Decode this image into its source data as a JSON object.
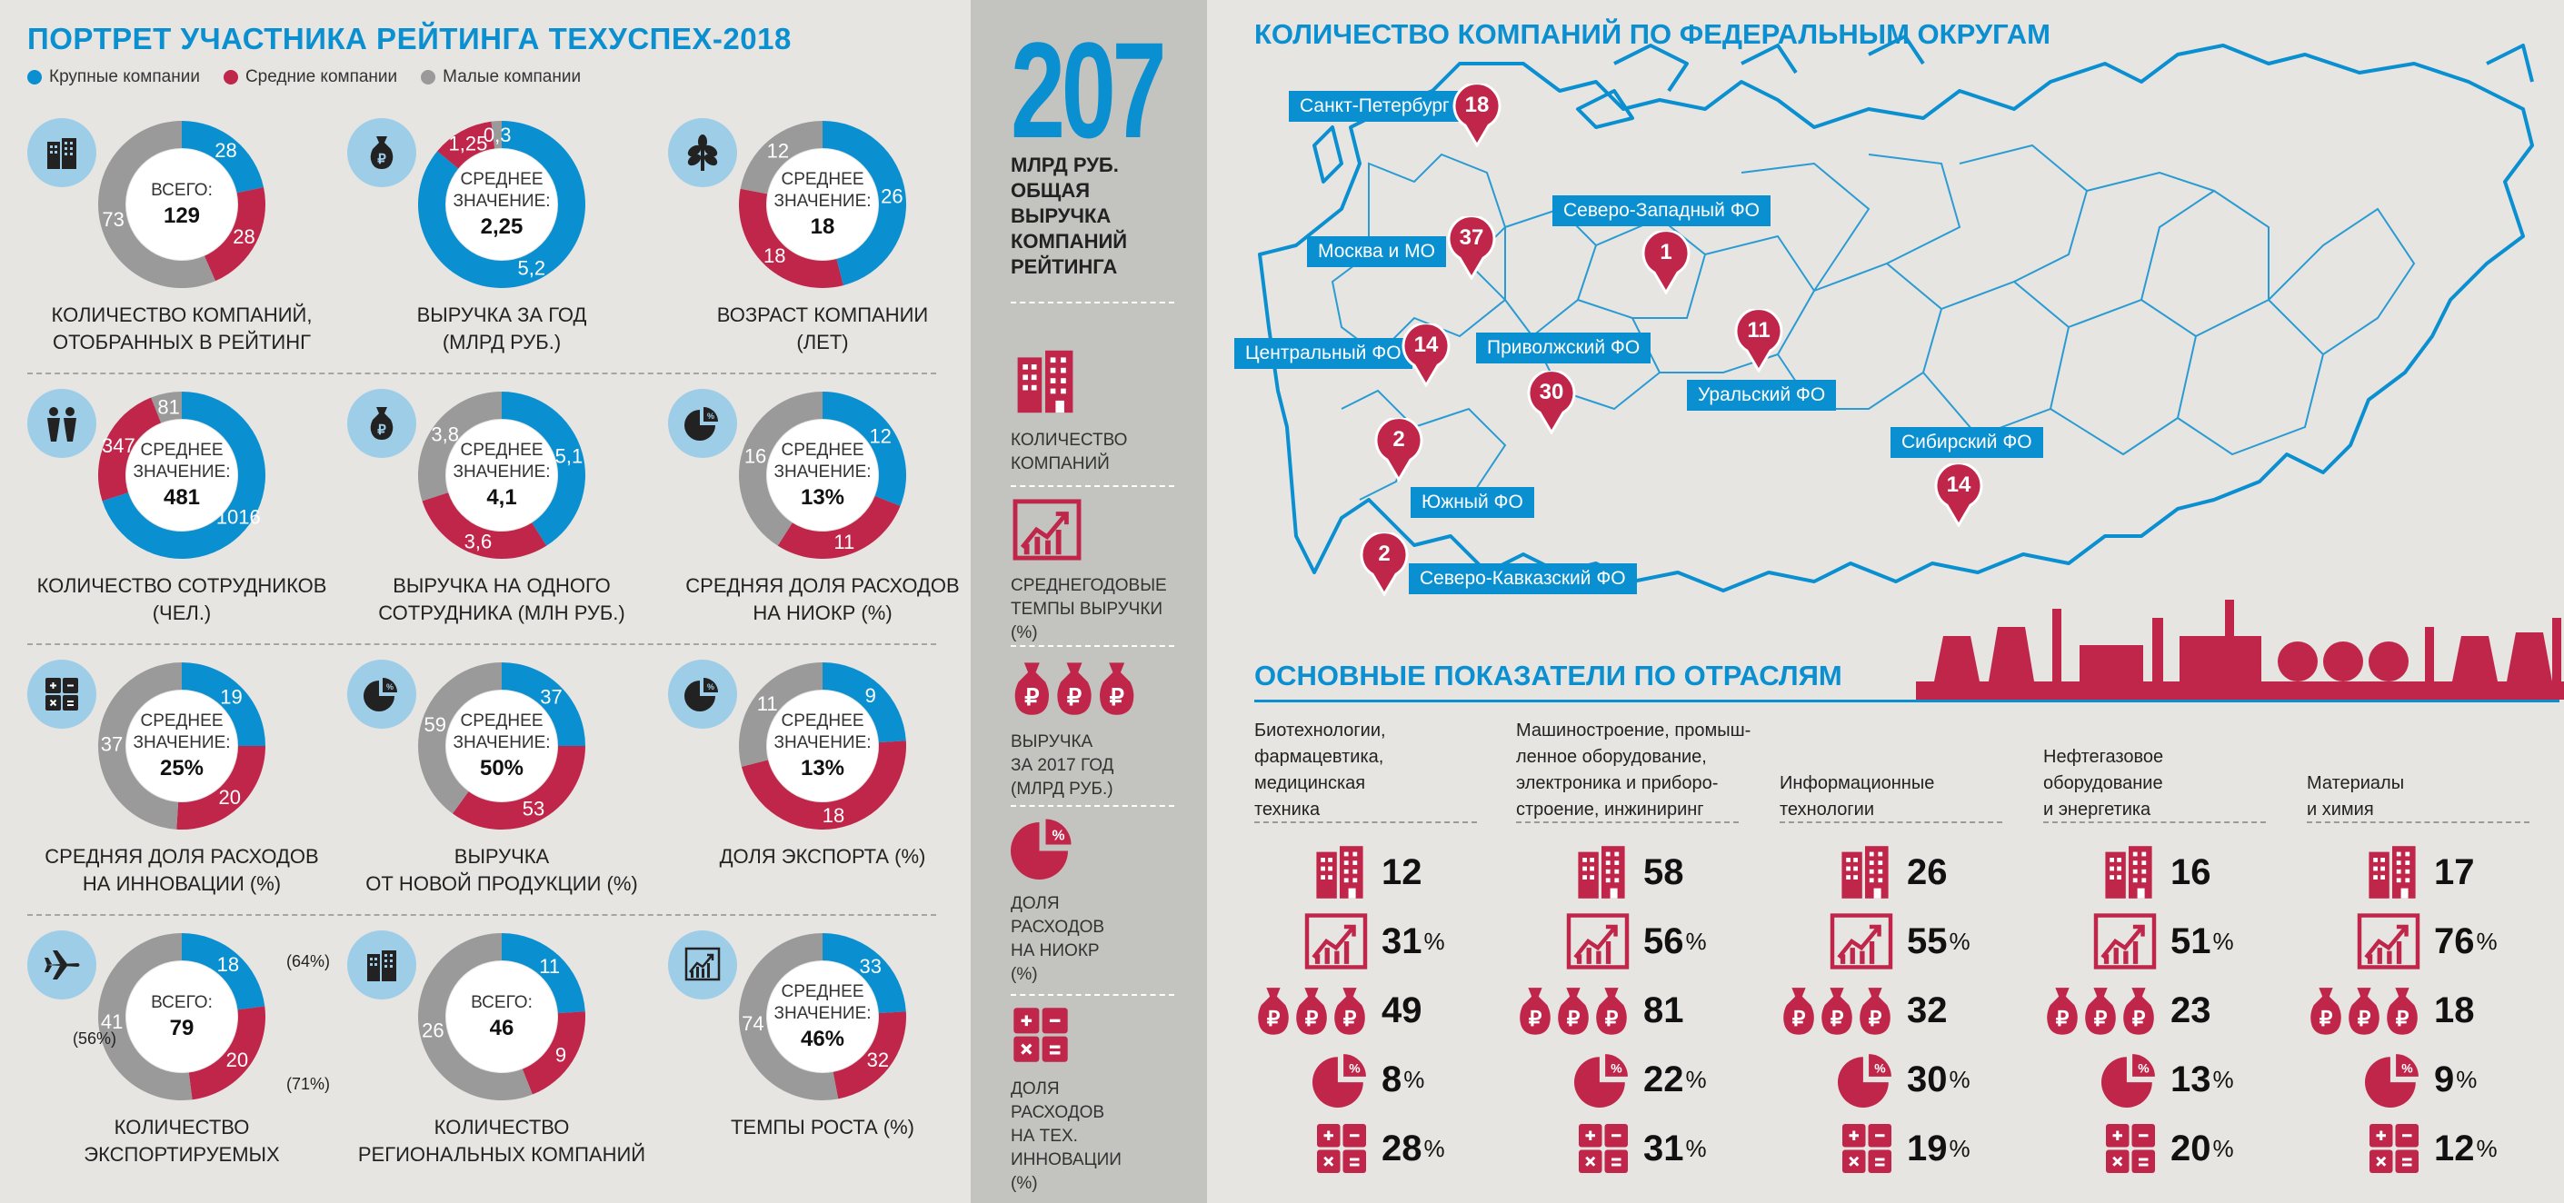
{
  "left": {
    "title": "ПОРТРЕТ УЧАСТНИКА РЕЙТИНГА ТЕХУСПЕХ-2018",
    "legend": [
      {
        "label": "Крупные компании",
        "color": "#0a8fd0"
      },
      {
        "label": "Средние компании",
        "color": "#c0264a"
      },
      {
        "label": "Малые компании",
        "color": "#9a9a9a"
      }
    ],
    "donuts": [
      {
        "icon": "building-icon",
        "center1": "ВСЕГО:",
        "center2": "129",
        "large": "28",
        "medium": "28",
        "small": "73",
        "shares": [
          28,
          28,
          73
        ],
        "label1": "КОЛИЧЕСТВО КОМПАНИЙ,",
        "label2": "ОТОБРАННЫХ В РЕЙТИНГ"
      },
      {
        "icon": "money-bag-icon",
        "center1": "СРЕДНЕЕ ЗНАЧЕНИЕ:",
        "center2": "2,25",
        "large": "5,2",
        "medium": "1,25",
        "small": "0,3",
        "shares": [
          86,
          12,
          2
        ],
        "label1": "ВЫРУЧКА ЗА ГОД",
        "label2": "(МЛРД РУБ.)"
      },
      {
        "icon": "sprout-icon",
        "center1": "СРЕДНЕЕ ЗНАЧЕНИЕ:",
        "center2": "18",
        "large": "26",
        "medium": "18",
        "small": "12",
        "shares": [
          46,
          32,
          22
        ],
        "label1": "ВОЗРАСТ КОМПАНИИ",
        "label2": "(ЛЕТ)"
      },
      {
        "icon": "people-icon",
        "center1": "СРЕДНЕЕ ЗНАЧЕНИЕ:",
        "center2": "481",
        "large": "1016",
        "medium": "347",
        "small": "81",
        "shares": [
          70,
          24,
          6
        ],
        "label1": "КОЛИЧЕСТВО СОТРУДНИКОВ",
        "label2": "(ЧЕЛ.)"
      },
      {
        "icon": "money-bag-icon",
        "center1": "СРЕДНЕЕ ЗНАЧЕНИЕ:",
        "center2": "4,1",
        "large": "5,1",
        "medium": "3,6",
        "small": "3,8",
        "shares": [
          41,
          29,
          30
        ],
        "label1": "ВЫРУЧКА НА ОДНОГО",
        "label2": "СОТРУДНИКА (МЛН РУБ.)"
      },
      {
        "icon": "pie-percent-icon",
        "center1": "СРЕДНЕЕ ЗНАЧЕНИЕ:",
        "center2": "13%",
        "large": "12",
        "medium": "11",
        "small": "16",
        "shares": [
          31,
          28,
          41
        ],
        "label1": "СРЕДНЯЯ ДОЛЯ РАСХОДОВ",
        "label2": "НА НИОКР (%)"
      },
      {
        "icon": "calculator-icon",
        "center1": "СРЕДНЕЕ ЗНАЧЕНИЕ:",
        "center2": "25%",
        "large": "19",
        "medium": "20",
        "small": "37",
        "shares": [
          25,
          26,
          49
        ],
        "label1": "СРЕДНЯЯ ДОЛЯ РАСХОДОВ",
        "label2": "НА ИННОВАЦИИ (%)"
      },
      {
        "icon": "pie-percent-icon",
        "center1": "СРЕДНЕЕ ЗНАЧЕНИЕ:",
        "center2": "50%",
        "large": "37",
        "medium": "53",
        "small": "59",
        "shares": [
          25,
          35,
          40
        ],
        "label1": "ВЫРУЧКА",
        "label2": "ОТ НОВОЙ ПРОДУКЦИИ (%)"
      },
      {
        "icon": "pie-percent-icon",
        "center1": "СРЕДНЕЕ ЗНАЧЕНИЕ:",
        "center2": "13%",
        "large": "9",
        "medium": "18",
        "small": "11",
        "shares": [
          24,
          47,
          29
        ],
        "label1": "ДОЛЯ ЭКСПОРТА (%)",
        "label2": ""
      },
      {
        "icon": "airplane-icon",
        "center1": "ВСЕГО:",
        "center2": "79",
        "large": "18",
        "medium": "20",
        "small": "41",
        "shares": [
          23,
          25,
          52
        ],
        "label1": "КОЛИЧЕСТВО",
        "label2": "ЭКСПОРТИРУЕМЫХ",
        "extra_large": "(64%)",
        "extra_medium": "(71%)",
        "extra_small": "(56%)"
      },
      {
        "icon": "building-icon",
        "center1": "ВСЕГО:",
        "center2": "46",
        "large": "11",
        "medium": "9",
        "small": "26",
        "shares": [
          24,
          20,
          56
        ],
        "label1": "КОЛИЧЕСТВО",
        "label2": "РЕГИОНАЛЬНЫХ КОМПАНИЙ"
      },
      {
        "icon": "growth-chart-icon",
        "center1": "СРЕДНЕЕ ЗНАЧЕНИЕ:",
        "center2": "46%",
        "large": "33",
        "medium": "32",
        "small": "74",
        "shares": [
          24,
          23,
          53
        ],
        "label1": "ТЕМПЫ РОСТА (%)",
        "label2": ""
      }
    ]
  },
  "mid": {
    "big_number": "207",
    "subtitle": [
      "МЛРД РУБ.",
      "ОБЩАЯ",
      "ВЫРУЧКА",
      "КОМПАНИЙ",
      "РЕЙТИНГА"
    ],
    "legend": [
      {
        "icon": "building-icon",
        "text": [
          "КОЛИЧЕСТВО",
          "КОМПАНИЙ"
        ]
      },
      {
        "icon": "growth-chart-icon",
        "text": [
          "СРЕДНЕГОДОВЫЕ",
          "ТЕМПЫ ВЫРУЧКИ",
          "(%)"
        ]
      },
      {
        "icon": "money-bags-icon",
        "text": [
          "ВЫРУЧКА",
          "ЗА 2017 ГОД",
          "(МЛРД РУБ.)"
        ]
      },
      {
        "icon": "pie-percent-icon",
        "text": [
          "ДОЛЯ",
          "РАСХОДОВ",
          "НА НИОКР",
          "(%)"
        ]
      },
      {
        "icon": "calculator-icon",
        "text": [
          "ДОЛЯ",
          "РАСХОДОВ",
          "НА ТЕХ.",
          "ИННОВАЦИИ",
          "(%)"
        ]
      }
    ]
  },
  "map": {
    "title": "КОЛИЧЕСТВО КОМПАНИЙ ПО ФЕДЕРАЛЬНЫМ ОКРУГАМ",
    "pins": [
      {
        "name": "Санкт-Петербург",
        "value": "18"
      },
      {
        "name": "Москва и МО",
        "value": "37"
      },
      {
        "name": "Северо-Западный ФО",
        "value": "1"
      },
      {
        "name": "Центральный ФО",
        "value": "14"
      },
      {
        "name": "Приволжский ФО",
        "value": "30"
      },
      {
        "name": "Уральский ФО",
        "value": "11"
      },
      {
        "name": "Южный ФО",
        "value": "2"
      },
      {
        "name": "Сибирский ФО",
        "value": "14"
      },
      {
        "name": "Северо-Кавказский ФО",
        "value": "2"
      }
    ]
  },
  "industries": {
    "title": "ОСНОВНЫЕ ПОКАЗАТЕЛИ ПО ОТРАСЛЯМ",
    "sectors": [
      {
        "name": [
          "Биотехнологии,",
          "фармацевтика,",
          "медицинская",
          "техника"
        ],
        "companies": "12",
        "growth": "31",
        "revenue": "49",
        "rnd": "8",
        "innov": "28"
      },
      {
        "name": [
          "Машиностроение, промыш-",
          "ленное оборудование,",
          "электроника и приборо-",
          "строение, инжиниринг"
        ],
        "companies": "58",
        "growth": "56",
        "revenue": "81",
        "rnd": "22",
        "innov": "31"
      },
      {
        "name": [
          "",
          "",
          "Информационные",
          "технологии"
        ],
        "companies": "26",
        "growth": "55",
        "revenue": "32",
        "rnd": "30",
        "innov": "19"
      },
      {
        "name": [
          "",
          "Нефтегазовое",
          "оборудование",
          "и энергетика"
        ],
        "companies": "16",
        "growth": "51",
        "revenue": "23",
        "rnd": "13",
        "innov": "20"
      },
      {
        "name": [
          "",
          "",
          "Материалы",
          "и химия"
        ],
        "companies": "17",
        "growth": "76",
        "revenue": "18",
        "rnd": "9",
        "innov": "12"
      }
    ],
    "pct_sign": "%"
  }
}
